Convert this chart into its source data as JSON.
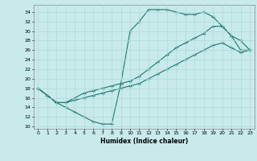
{
  "xlabel": "Humidex (Indice chaleur)",
  "bg_color": "#c8eaea",
  "grid_color": "#b0d8d8",
  "line_color": "#1a7a6a",
  "xlim": [
    -0.5,
    23.5
  ],
  "ylim": [
    9.5,
    35.5
  ],
  "xticks": [
    0,
    1,
    2,
    3,
    4,
    5,
    6,
    7,
    8,
    9,
    10,
    11,
    12,
    13,
    14,
    15,
    16,
    17,
    18,
    19,
    20,
    21,
    22,
    23
  ],
  "yticks": [
    10,
    12,
    14,
    16,
    18,
    20,
    22,
    24,
    26,
    28,
    30,
    32,
    34
  ],
  "line1_x": [
    0,
    1,
    2,
    3,
    4,
    5,
    6,
    7,
    8,
    9,
    10,
    11,
    12,
    13,
    14,
    15,
    16,
    17,
    18,
    19,
    20,
    21,
    22,
    23
  ],
  "line1_y": [
    18,
    16.5,
    15,
    14,
    13,
    12,
    11,
    10.5,
    10.5,
    19,
    30,
    32,
    34.5,
    34.5,
    34.5,
    34,
    33.5,
    33.5,
    34,
    33,
    31,
    29,
    28,
    26
  ],
  "line2_x": [
    0,
    1,
    2,
    3,
    4,
    5,
    6,
    7,
    8,
    9,
    10,
    11,
    12,
    13,
    14,
    15,
    16,
    17,
    18,
    19,
    20,
    21,
    22,
    23
  ],
  "line2_y": [
    18,
    16.5,
    15,
    15,
    16,
    17,
    17.5,
    18,
    18.5,
    19,
    19.5,
    20.5,
    22,
    23.5,
    25,
    26.5,
    27.5,
    28.5,
    29.5,
    31,
    31,
    29,
    26,
    26
  ],
  "line3_x": [
    0,
    1,
    2,
    3,
    4,
    5,
    6,
    7,
    8,
    9,
    10,
    11,
    12,
    13,
    14,
    15,
    16,
    17,
    18,
    19,
    20,
    21,
    22,
    23
  ],
  "line3_y": [
    18,
    16.5,
    15,
    15,
    15.5,
    16,
    16.5,
    17,
    17.5,
    18,
    18.5,
    19,
    20,
    21,
    22,
    23,
    24,
    25,
    26,
    27,
    27.5,
    26.5,
    25.5,
    26
  ]
}
